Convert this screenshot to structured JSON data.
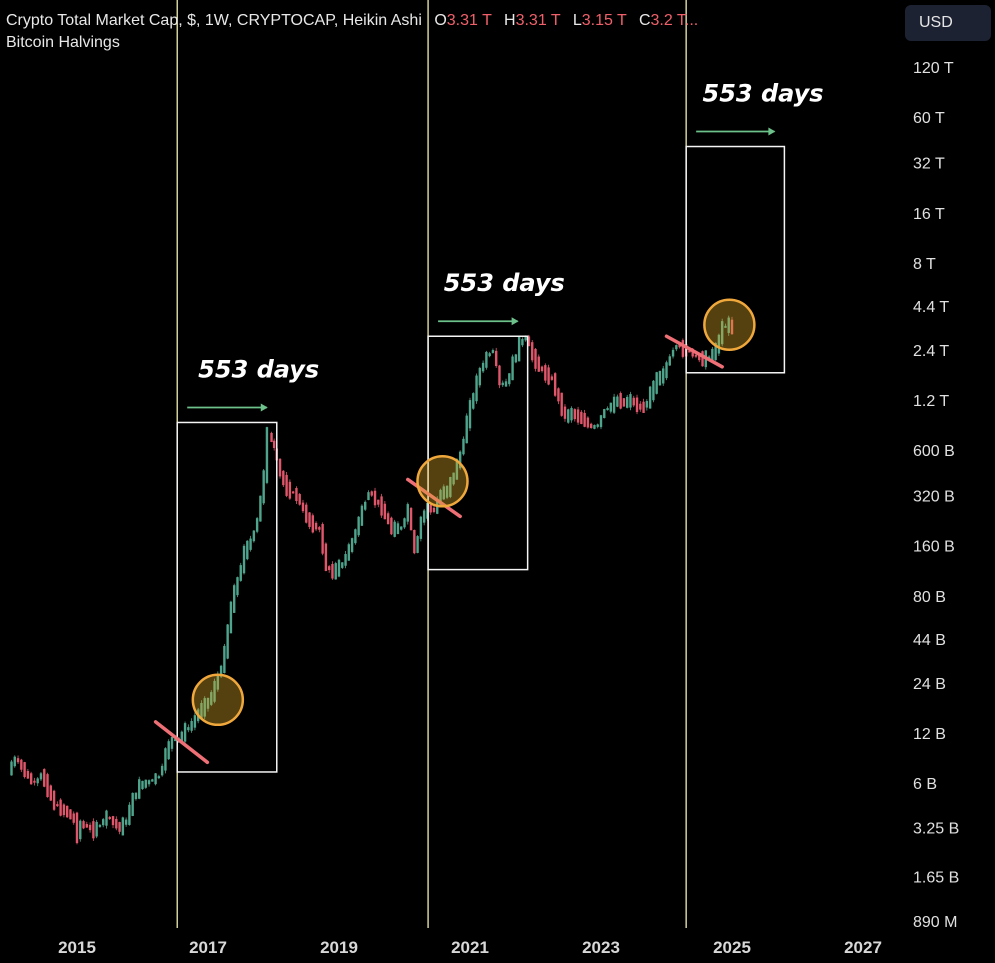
{
  "header": {
    "title": "Crypto Total Market Cap, $, 1W, CRYPTOCAP, Heikin Ashi",
    "ohlc": [
      {
        "key": "O",
        "value": "3.31 T"
      },
      {
        "key": "H",
        "value": "3.31 T"
      },
      {
        "key": "L",
        "value": "3.15 T"
      },
      {
        "key": "C",
        "value": "3.2 T..."
      }
    ],
    "indicator": "Bitcoin Halvings",
    "currency_button": "USD"
  },
  "colors": {
    "up": "#4fa58c",
    "down": "#e0566a",
    "halving_line": "#f3efb2",
    "box": "#f5f5f5",
    "circle": "#f0a83c",
    "trendline": "#ee6f76",
    "arrow": "#6cc28a"
  },
  "chart_data": {
    "type": "line",
    "title": "Crypto Total Market Cap, $, 1W, CRYPTOCAP, Heikin Ashi",
    "y_scale": "log",
    "ylim": [
      "890 M",
      "120 T"
    ],
    "y_ticks": [
      "120 T",
      "60 T",
      "32 T",
      "16 T",
      "8 T",
      "4.4 T",
      "2.4 T",
      "1.2 T",
      "600 B",
      "320 B",
      "160 B",
      "80 B",
      "44 B",
      "24 B",
      "12 B",
      "6 B",
      "3.25 B",
      "1.65 B",
      "890 M"
    ],
    "x_ticks": [
      "2015",
      "2017",
      "2019",
      "2021",
      "2023",
      "2025",
      "2027"
    ],
    "xlim": [
      2014.0,
      2027.3
    ],
    "halvings": [
      2016.53,
      2020.36,
      2024.3
    ],
    "series": [
      {
        "values_billion_usd": [
          [
            2014.0,
            7
          ],
          [
            2014.1,
            8.5
          ],
          [
            2014.2,
            7.5
          ],
          [
            2014.3,
            6.5
          ],
          [
            2014.4,
            6
          ],
          [
            2014.5,
            6.8
          ],
          [
            2014.6,
            5.5
          ],
          [
            2014.7,
            4.5
          ],
          [
            2014.8,
            4.2
          ],
          [
            2014.9,
            4
          ],
          [
            2015.0,
            3.6
          ],
          [
            2015.05,
            2.9
          ],
          [
            2015.1,
            3.4
          ],
          [
            2015.2,
            3.3
          ],
          [
            2015.3,
            3.1
          ],
          [
            2015.4,
            3.4
          ],
          [
            2015.5,
            3.8
          ],
          [
            2015.6,
            3.5
          ],
          [
            2015.7,
            3.2
          ],
          [
            2015.8,
            3.6
          ],
          [
            2015.9,
            4.8
          ],
          [
            2016.0,
            5.8
          ],
          [
            2016.1,
            6
          ],
          [
            2016.2,
            6.3
          ],
          [
            2016.3,
            6.6
          ],
          [
            2016.4,
            9
          ],
          [
            2016.5,
            11
          ],
          [
            2016.6,
            11
          ],
          [
            2016.7,
            12.5
          ],
          [
            2016.8,
            13.5
          ],
          [
            2016.9,
            16
          ],
          [
            2017.0,
            17.5
          ],
          [
            2017.1,
            20
          ],
          [
            2017.2,
            26
          ],
          [
            2017.3,
            36
          ],
          [
            2017.4,
            70
          ],
          [
            2017.5,
            100
          ],
          [
            2017.6,
            145
          ],
          [
            2017.7,
            170
          ],
          [
            2017.8,
            230
          ],
          [
            2017.9,
            420
          ],
          [
            2017.97,
            750
          ],
          [
            2018.05,
            620
          ],
          [
            2018.15,
            430
          ],
          [
            2018.25,
            350
          ],
          [
            2018.4,
            320
          ],
          [
            2018.5,
            260
          ],
          [
            2018.6,
            220
          ],
          [
            2018.75,
            200
          ],
          [
            2018.85,
            120
          ],
          [
            2018.95,
            110
          ],
          [
            2019.1,
            125
          ],
          [
            2019.25,
            170
          ],
          [
            2019.4,
            260
          ],
          [
            2019.5,
            340
          ],
          [
            2019.6,
            300
          ],
          [
            2019.7,
            270
          ],
          [
            2019.85,
            200
          ],
          [
            2020.0,
            205
          ],
          [
            2020.1,
            270
          ],
          [
            2020.2,
            145
          ],
          [
            2020.3,
            230
          ],
          [
            2020.4,
            270
          ],
          [
            2020.5,
            260
          ],
          [
            2020.6,
            330
          ],
          [
            2020.7,
            340
          ],
          [
            2020.8,
            430
          ],
          [
            2020.9,
            560
          ],
          [
            2021.0,
            900
          ],
          [
            2021.1,
            1300
          ],
          [
            2021.2,
            1800
          ],
          [
            2021.3,
            2200
          ],
          [
            2021.4,
            2400
          ],
          [
            2021.5,
            1500
          ],
          [
            2021.6,
            1500
          ],
          [
            2021.7,
            2000
          ],
          [
            2021.8,
            2600
          ],
          [
            2021.9,
            2900
          ],
          [
            2022.0,
            2200
          ],
          [
            2022.1,
            1900
          ],
          [
            2022.2,
            1700
          ],
          [
            2022.3,
            1600
          ],
          [
            2022.4,
            1200
          ],
          [
            2022.5,
            950
          ],
          [
            2022.6,
            1000
          ],
          [
            2022.7,
            950
          ],
          [
            2022.8,
            900
          ],
          [
            2022.9,
            820
          ],
          [
            2023.0,
            850
          ],
          [
            2023.1,
            1050
          ],
          [
            2023.2,
            1100
          ],
          [
            2023.3,
            1200
          ],
          [
            2023.4,
            1150
          ],
          [
            2023.5,
            1200
          ],
          [
            2023.6,
            1100
          ],
          [
            2023.7,
            1080
          ],
          [
            2023.8,
            1300
          ],
          [
            2023.9,
            1600
          ],
          [
            2024.0,
            1700
          ],
          [
            2024.1,
            2200
          ],
          [
            2024.2,
            2600
          ],
          [
            2024.3,
            2400
          ],
          [
            2024.4,
            2350
          ],
          [
            2024.5,
            2200
          ],
          [
            2024.6,
            2100
          ],
          [
            2024.7,
            2200
          ],
          [
            2024.8,
            2400
          ],
          [
            2024.9,
            3300
          ],
          [
            2025.0,
            3400
          ],
          [
            2025.05,
            3200
          ]
        ]
      }
    ],
    "annotations": [
      {
        "text": "553 days",
        "label_year": 2016.85
      },
      {
        "text": "553 days",
        "label_year": 2020.6
      },
      {
        "text": "553 days",
        "label_year": 2024.55
      }
    ],
    "boxes": [
      {
        "x_from": 2016.53,
        "x_to": 2018.05,
        "y_from_b": 7,
        "y_to_b": 880
      },
      {
        "x_from": 2020.36,
        "x_to": 2021.88,
        "y_from_b": 115,
        "y_to_b": 2900
      },
      {
        "x_from": 2024.3,
        "x_to": 2025.8,
        "y_from_b": 1750,
        "y_to_b": 40000
      }
    ],
    "circles": [
      {
        "x": 2017.15,
        "y_b": 19
      },
      {
        "x": 2020.58,
        "y_b": 390
      },
      {
        "x": 2024.96,
        "y_b": 3400
      }
    ],
    "trendlines": [
      {
        "x1": 2016.2,
        "y1_b": 14,
        "x2": 2016.99,
        "y2_b": 8
      },
      {
        "x1": 2020.05,
        "y1_b": 400,
        "x2": 2020.85,
        "y2_b": 240
      },
      {
        "x1": 2024.0,
        "y1_b": 2900,
        "x2": 2024.85,
        "y2_b": 1900
      }
    ]
  }
}
